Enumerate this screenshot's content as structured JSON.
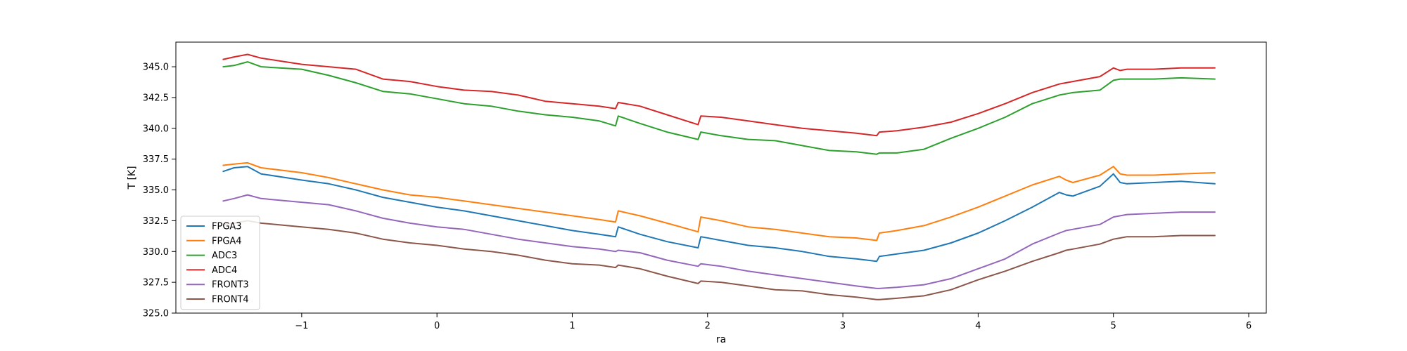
{
  "chart_data": {
    "type": "line",
    "title": "",
    "xlabel": "ra",
    "ylabel": "T [K]",
    "xlim": [
      -1.93,
      6.13
    ],
    "ylim": [
      325.0,
      347.0
    ],
    "xticks": [
      -1,
      0,
      1,
      2,
      3,
      4,
      5,
      6
    ],
    "xtick_labels": [
      "−1",
      "0",
      "1",
      "2",
      "3",
      "4",
      "5",
      "6"
    ],
    "yticks": [
      325.0,
      327.5,
      330.0,
      332.5,
      335.0,
      337.5,
      340.0,
      342.5,
      345.0
    ],
    "ytick_labels": [
      "325.0",
      "327.5",
      "330.0",
      "332.5",
      "335.0",
      "337.5",
      "340.0",
      "342.5",
      "345.0"
    ],
    "grid": false,
    "legend_position": "lower-left",
    "x": [
      -1.58,
      -1.5,
      -1.4,
      -1.3,
      -1.0,
      -0.8,
      -0.6,
      -0.4,
      -0.2,
      0.0,
      0.2,
      0.4,
      0.6,
      0.8,
      1.0,
      1.2,
      1.32,
      1.34,
      1.5,
      1.7,
      1.93,
      1.95,
      2.1,
      2.3,
      2.5,
      2.7,
      2.9,
      3.1,
      3.25,
      3.27,
      3.4,
      3.6,
      3.8,
      4.0,
      4.2,
      4.4,
      4.6,
      4.65,
      4.7,
      4.9,
      5.0,
      5.05,
      5.1,
      5.3,
      5.5,
      5.75
    ],
    "series": [
      {
        "name": "FPGA3",
        "color": "#1f77b4",
        "values": [
          336.5,
          336.8,
          336.9,
          336.3,
          335.8,
          335.5,
          335.0,
          334.4,
          334.0,
          333.6,
          333.3,
          332.9,
          332.5,
          332.1,
          331.7,
          331.4,
          331.2,
          332.0,
          331.4,
          330.8,
          330.3,
          331.2,
          330.9,
          330.5,
          330.3,
          330.0,
          329.6,
          329.4,
          329.2,
          329.6,
          329.8,
          330.1,
          330.7,
          331.5,
          332.5,
          333.6,
          334.8,
          334.6,
          334.5,
          335.3,
          336.3,
          335.6,
          335.5,
          335.6,
          335.7,
          335.5
        ]
      },
      {
        "name": "FPGA4",
        "color": "#ff7f0e",
        "values": [
          337.0,
          337.1,
          337.2,
          336.8,
          336.4,
          336.0,
          335.5,
          335.0,
          334.6,
          334.4,
          334.1,
          333.8,
          333.5,
          333.2,
          332.9,
          332.6,
          332.4,
          333.3,
          332.9,
          332.3,
          331.6,
          332.8,
          332.5,
          332.0,
          331.8,
          331.5,
          331.2,
          331.1,
          330.9,
          331.5,
          331.7,
          332.1,
          332.8,
          333.6,
          334.5,
          335.4,
          336.1,
          335.8,
          335.6,
          336.2,
          336.9,
          336.3,
          336.2,
          336.2,
          336.3,
          336.4
        ]
      },
      {
        "name": "ADC3",
        "color": "#2ca02c",
        "values": [
          345.0,
          345.1,
          345.4,
          345.0,
          344.8,
          344.3,
          343.7,
          343.0,
          342.8,
          342.4,
          342.0,
          341.8,
          341.4,
          341.1,
          340.9,
          340.6,
          340.2,
          341.0,
          340.4,
          339.7,
          339.1,
          339.7,
          339.4,
          339.1,
          339.0,
          338.6,
          338.2,
          338.1,
          337.9,
          338.0,
          338.0,
          338.3,
          339.2,
          340.0,
          340.9,
          342.0,
          342.7,
          342.8,
          342.9,
          343.1,
          343.9,
          344.0,
          344.0,
          344.0,
          344.1,
          344.0
        ]
      },
      {
        "name": "ADC4",
        "color": "#d62728",
        "values": [
          345.6,
          345.8,
          346.0,
          345.7,
          345.2,
          345.0,
          344.8,
          344.0,
          343.8,
          343.4,
          343.1,
          343.0,
          342.7,
          342.2,
          342.0,
          341.8,
          341.6,
          342.1,
          341.8,
          341.1,
          340.3,
          341.0,
          340.9,
          340.6,
          340.3,
          340.0,
          339.8,
          339.6,
          339.4,
          339.7,
          339.8,
          340.1,
          340.5,
          341.2,
          342.0,
          342.9,
          343.6,
          343.7,
          343.8,
          344.2,
          344.9,
          344.7,
          344.8,
          344.8,
          344.9,
          344.9
        ]
      },
      {
        "name": "FRONT3",
        "color": "#9467bd",
        "values": [
          334.1,
          334.3,
          334.6,
          334.3,
          334.0,
          333.8,
          333.3,
          332.7,
          332.3,
          332.0,
          331.8,
          331.4,
          331.0,
          330.7,
          330.4,
          330.2,
          330.0,
          330.1,
          329.9,
          329.3,
          328.8,
          329.0,
          328.8,
          328.4,
          328.1,
          327.8,
          327.5,
          327.2,
          327.0,
          327.0,
          327.1,
          327.3,
          327.8,
          328.6,
          329.4,
          330.6,
          331.5,
          331.7,
          331.8,
          332.2,
          332.8,
          332.9,
          333.0,
          333.1,
          333.2,
          333.2
        ]
      },
      {
        "name": "FRONT4",
        "color": "#8c564b",
        "values": [
          332.2,
          332.3,
          332.5,
          332.3,
          332.0,
          331.8,
          331.5,
          331.0,
          330.7,
          330.5,
          330.2,
          330.0,
          329.7,
          329.3,
          329.0,
          328.9,
          328.7,
          328.9,
          328.6,
          328.0,
          327.4,
          327.6,
          327.5,
          327.2,
          326.9,
          326.8,
          326.5,
          326.3,
          326.1,
          326.1,
          326.2,
          326.4,
          326.9,
          327.7,
          328.4,
          329.2,
          329.9,
          330.1,
          330.2,
          330.6,
          331.0,
          331.1,
          331.2,
          331.2,
          331.3,
          331.3
        ]
      }
    ]
  }
}
